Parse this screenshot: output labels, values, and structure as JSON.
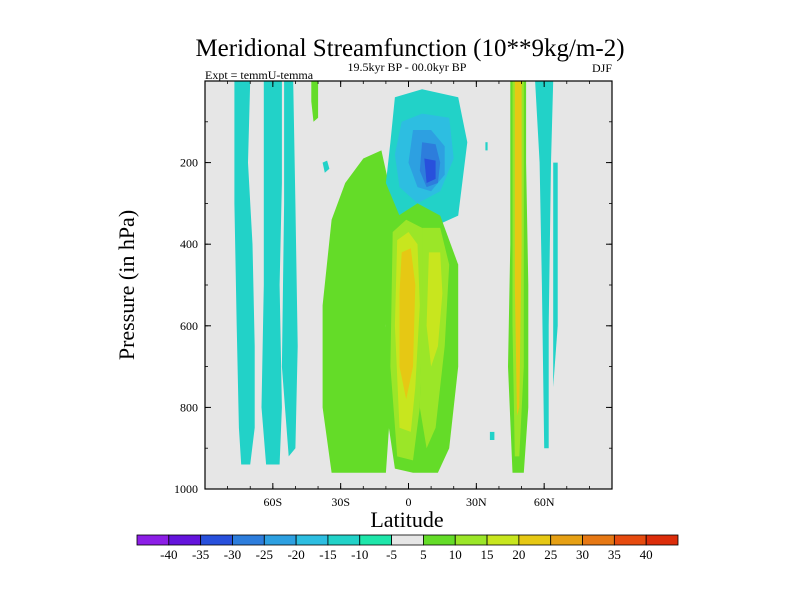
{
  "chart_data": {
    "type": "heatmap",
    "title": "Meridional Streamfunction (10**9kg/m-2)",
    "subtitle": "19.5kyr BP - 00.0kyr BP",
    "left_label": "Expt = temmU-temma",
    "right_label": "DJF",
    "xlabel": "Latitude",
    "ylabel": "Pressure (in hPa)",
    "xlim": [
      -90,
      90
    ],
    "ylim": [
      0,
      1000
    ],
    "y_inverted": true,
    "background_color": "#e6e6e6",
    "x_ticks": [
      {
        "value": -60,
        "label": "60S"
      },
      {
        "value": -30,
        "label": "30S"
      },
      {
        "value": 0,
        "label": "0"
      },
      {
        "value": 30,
        "label": "30N"
      },
      {
        "value": 60,
        "label": "60N"
      }
    ],
    "y_ticks": [
      {
        "value": 200,
        "label": "200"
      },
      {
        "value": 400,
        "label": "400"
      },
      {
        "value": 600,
        "label": "600"
      },
      {
        "value": 800,
        "label": "800"
      },
      {
        "value": 1000,
        "label": "1000"
      }
    ],
    "colorbar": {
      "labels": [
        "-40",
        "-35",
        "-30",
        "-25",
        "-20",
        "-15",
        "-10",
        "-5",
        "5",
        "10",
        "15",
        "20",
        "25",
        "30",
        "35",
        "40"
      ],
      "colors": [
        "#8c1ee6",
        "#6414dc",
        "#2850dc",
        "#2d7ddc",
        "#2da0e1",
        "#2dbee1",
        "#22d2c8",
        "#1ee6aa",
        "#e6e6e6",
        "#64dc28",
        "#9be628",
        "#c8e61e",
        "#e6c814",
        "#e6a014",
        "#e67814",
        "#e64b0f",
        "#dc2d0a"
      ]
    },
    "regions": [
      {
        "name": "sh-polar-cell",
        "level": -10,
        "points": [
          [
            -77,
            0
          ],
          [
            -70,
            0
          ],
          [
            -71,
            200
          ],
          [
            -69,
            400
          ],
          [
            -68,
            650
          ],
          [
            -68,
            850
          ],
          [
            -70,
            940
          ],
          [
            -74,
            940
          ],
          [
            -75,
            850
          ],
          [
            -76,
            600
          ],
          [
            -77,
            300
          ]
        ]
      },
      {
        "name": "sh-midlat-cell",
        "level": -10,
        "points": [
          [
            -64,
            0
          ],
          [
            -56,
            0
          ],
          [
            -56,
            250
          ],
          [
            -57,
            500
          ],
          [
            -56,
            800
          ],
          [
            -57,
            940
          ],
          [
            -63,
            940
          ],
          [
            -65,
            800
          ],
          [
            -64,
            500
          ]
        ]
      },
      {
        "name": "sh-upper-band",
        "level": -10,
        "points": [
          [
            -55,
            0
          ],
          [
            -51,
            0
          ],
          [
            -50,
            300
          ],
          [
            -49,
            650
          ],
          [
            -50,
            900
          ],
          [
            -53,
            920
          ],
          [
            -56,
            700
          ],
          [
            -55,
            300
          ]
        ]
      },
      {
        "name": "upper-small-blob",
        "level": -10,
        "points": [
          [
            -38,
            200
          ],
          [
            -36,
            195
          ],
          [
            -35,
            215
          ],
          [
            -37,
            225
          ]
        ]
      },
      {
        "name": "sh-ferrel-green",
        "level": 5,
        "points": [
          [
            -43,
            0
          ],
          [
            -40,
            0
          ],
          [
            -40,
            90
          ],
          [
            -42,
            100
          ],
          [
            -43,
            50
          ]
        ]
      },
      {
        "name": "hadley-south-green",
        "level": 5,
        "points": [
          [
            -38,
            550
          ],
          [
            -34,
            340
          ],
          [
            -28,
            250
          ],
          [
            -20,
            190
          ],
          [
            -12,
            170
          ],
          [
            -8,
            270
          ],
          [
            -2,
            310
          ],
          [
            -8,
            420
          ],
          [
            -10,
            600
          ],
          [
            -8,
            800
          ],
          [
            -10,
            960
          ],
          [
            -24,
            960
          ],
          [
            -34,
            960
          ],
          [
            -38,
            800
          ]
        ]
      },
      {
        "name": "upper-blue-outer",
        "level": -10,
        "points": [
          [
            -6,
            40
          ],
          [
            6,
            20
          ],
          [
            22,
            40
          ],
          [
            26,
            150
          ],
          [
            22,
            330
          ],
          [
            10,
            360
          ],
          [
            -4,
            330
          ],
          [
            -10,
            250
          ],
          [
            -8,
            150
          ]
        ]
      },
      {
        "name": "upper-blue-mid",
        "level": -15,
        "points": [
          [
            -3,
            100
          ],
          [
            6,
            80
          ],
          [
            18,
            90
          ],
          [
            20,
            190
          ],
          [
            14,
            270
          ],
          [
            4,
            300
          ],
          [
            -4,
            260
          ],
          [
            -6,
            180
          ]
        ]
      },
      {
        "name": "upper-blue-inner",
        "level": -20,
        "points": [
          [
            2,
            120
          ],
          [
            10,
            120
          ],
          [
            16,
            160
          ],
          [
            16,
            230
          ],
          [
            10,
            270
          ],
          [
            4,
            260
          ],
          [
            0,
            200
          ]
        ]
      },
      {
        "name": "upper-blue-core",
        "level": -25,
        "points": [
          [
            6,
            150
          ],
          [
            12,
            155
          ],
          [
            14,
            200
          ],
          [
            13,
            250
          ],
          [
            8,
            260
          ],
          [
            5,
            220
          ]
        ]
      },
      {
        "name": "upper-blue-peak",
        "level": -30,
        "points": [
          [
            7,
            190
          ],
          [
            12,
            195
          ],
          [
            12,
            240
          ],
          [
            8,
            250
          ]
        ]
      },
      {
        "name": "hadley-north-green",
        "level": 5,
        "points": [
          [
            -10,
            350
          ],
          [
            4,
            300
          ],
          [
            14,
            330
          ],
          [
            22,
            450
          ],
          [
            22,
            700
          ],
          [
            18,
            900
          ],
          [
            13,
            960
          ],
          [
            2,
            960
          ],
          [
            -6,
            950
          ],
          [
            -10,
            800
          ]
        ]
      },
      {
        "name": "hadley-south-yellow",
        "level": 10,
        "points": [
          [
            -7,
            370
          ],
          [
            -1,
            340
          ],
          [
            6,
            360
          ],
          [
            8,
            450
          ],
          [
            6,
            600
          ],
          [
            5,
            800
          ],
          [
            2,
            930
          ],
          [
            -5,
            920
          ],
          [
            -8,
            700
          ]
        ]
      },
      {
        "name": "hadley-south-orange",
        "level": 15,
        "points": [
          [
            -5,
            390
          ],
          [
            0,
            370
          ],
          [
            4,
            400
          ],
          [
            5,
            550
          ],
          [
            3,
            750
          ],
          [
            1,
            860
          ],
          [
            -4,
            850
          ],
          [
            -6,
            600
          ]
        ]
      },
      {
        "name": "hadley-south-core",
        "level": 20,
        "points": [
          [
            -3,
            420
          ],
          [
            1,
            410
          ],
          [
            3,
            500
          ],
          [
            2,
            700
          ],
          [
            -1,
            780
          ],
          [
            -4,
            700
          ],
          [
            -4,
            520
          ]
        ]
      },
      {
        "name": "hadley-north-yellow",
        "level": 10,
        "points": [
          [
            6,
            360
          ],
          [
            14,
            360
          ],
          [
            18,
            450
          ],
          [
            16,
            650
          ],
          [
            12,
            850
          ],
          [
            8,
            900
          ],
          [
            5,
            800
          ],
          [
            6,
            550
          ]
        ]
      },
      {
        "name": "hadley-north-core",
        "level": 15,
        "points": [
          [
            9,
            420
          ],
          [
            14,
            420
          ],
          [
            15,
            520
          ],
          [
            13,
            650
          ],
          [
            10,
            700
          ],
          [
            8,
            600
          ]
        ]
      },
      {
        "name": "nh-ferrel-green",
        "level": 5,
        "points": [
          [
            45,
            0
          ],
          [
            52,
            0
          ],
          [
            52,
            200
          ],
          [
            53,
            500
          ],
          [
            53,
            800
          ],
          [
            51,
            960
          ],
          [
            46,
            960
          ],
          [
            44,
            700
          ],
          [
            45,
            400
          ]
        ]
      },
      {
        "name": "nh-ferrel-yellow",
        "level": 10,
        "points": [
          [
            46,
            0
          ],
          [
            51,
            0
          ],
          [
            51,
            300
          ],
          [
            51,
            700
          ],
          [
            49,
            920
          ],
          [
            47,
            920
          ],
          [
            46,
            600
          ]
        ]
      },
      {
        "name": "nh-ferrel-core",
        "level": 20,
        "points": [
          [
            47,
            0
          ],
          [
            50,
            0
          ],
          [
            50,
            400
          ],
          [
            49,
            800
          ],
          [
            48,
            820
          ],
          [
            47,
            500
          ]
        ]
      },
      {
        "name": "nh-right-teal",
        "level": -10,
        "points": [
          [
            56,
            0
          ],
          [
            64,
            0
          ],
          [
            63,
            200
          ],
          [
            62,
            600
          ],
          [
            62,
            900
          ],
          [
            60,
            900
          ],
          [
            59,
            500
          ],
          [
            58,
            200
          ]
        ]
      },
      {
        "name": "nh-right-teal-2",
        "level": -10,
        "points": [
          [
            64,
            200
          ],
          [
            66,
            200
          ],
          [
            66,
            600
          ],
          [
            64,
            750
          ]
        ]
      },
      {
        "name": "small-blob-30",
        "level": -10,
        "points": [
          [
            34,
            150
          ],
          [
            35,
            150
          ],
          [
            35,
            170
          ],
          [
            34,
            170
          ]
        ]
      },
      {
        "name": "small-blob-37",
        "level": -10,
        "points": [
          [
            36,
            860
          ],
          [
            38,
            860
          ],
          [
            38,
            880
          ],
          [
            36,
            880
          ]
        ]
      }
    ]
  }
}
